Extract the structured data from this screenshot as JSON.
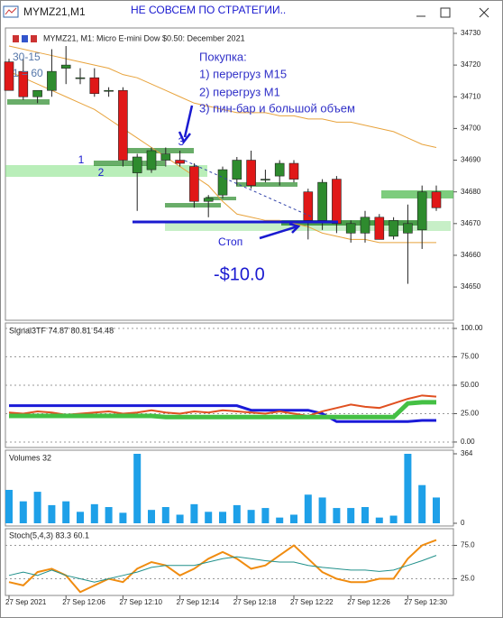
{
  "window": {
    "title": "MYMZ21,M1",
    "caption": "НЕ СОВСЕМ ПО СТРАТЕГИИ.."
  },
  "chart_data": [
    {
      "type": "candlestick",
      "title": "MYMZ21, M1:  Micro E-mini Dow $0.50: December 2021",
      "open": [
        34721,
        34718,
        34710,
        34712,
        34719,
        34716,
        34716,
        34712,
        34712,
        34686,
        34687,
        34690,
        34690,
        34688,
        34677,
        34679,
        34684,
        34690,
        34684,
        34685,
        34689,
        34680,
        34671,
        34684,
        34667,
        34667,
        34672,
        34666,
        34667,
        34668,
        34680
      ],
      "high": [
        34722,
        34722,
        34712,
        34725,
        34726,
        34719,
        34719,
        34713,
        34713,
        34692,
        34694,
        34694,
        34693,
        34689,
        34679,
        34688,
        34691,
        34693,
        34687,
        34690,
        34690,
        34681,
        34684,
        34685,
        34671,
        34674,
        34673,
        34672,
        34676,
        34682,
        34682
      ],
      "low": [
        34712,
        34709,
        34708,
        34710,
        34714,
        34714,
        34710,
        34710,
        34688,
        34674,
        34686,
        34688,
        34688,
        34675,
        34672,
        34678,
        34682,
        34681,
        34683,
        34682,
        34683,
        34665,
        34668,
        34667,
        34664,
        34664,
        34665,
        34665,
        34651,
        34662,
        34674
      ],
      "close": [
        34712,
        34710,
        34712,
        34718,
        34720,
        34716,
        34711,
        34712,
        34690,
        34691,
        34693,
        34692,
        34689,
        34677,
        34678,
        34687,
        34690,
        34682,
        34684,
        34689,
        34684,
        34671,
        34683,
        34670,
        34670,
        34672,
        34665,
        34671,
        34670,
        34680,
        34675
      ],
      "up_color": "#2e8b2e",
      "down_color": "#e01818",
      "bands": [
        {
          "color": "#e8a33c",
          "values": [
            34726,
            34725,
            34724,
            34723,
            34722,
            34721,
            34720,
            34719,
            34717,
            34716,
            34714,
            34712,
            34710,
            34708,
            34707,
            34706,
            34705,
            34705,
            34705,
            34704,
            34704,
            34703,
            34703,
            34702,
            34702,
            34701,
            34700,
            34699,
            34697,
            34695,
            34694
          ]
        },
        {
          "color": "#e8a33c",
          "values": [
            34718,
            34716,
            34714,
            34712,
            34710,
            34708,
            34706,
            34703,
            34700,
            34697,
            34694,
            34691,
            34688,
            34685,
            34682,
            34677,
            34673,
            34672,
            34671,
            34671,
            34670,
            34669,
            34667,
            34666,
            34665,
            34665,
            34664,
            34664,
            34664,
            34664,
            34664
          ]
        }
      ],
      "ylim": [
        34639.5,
        34731.7
      ],
      "yticks": [
        34650,
        34660,
        34670,
        34680,
        34690,
        34700,
        34710,
        34720,
        34730
      ],
      "xticks": [
        {
          "value": 0,
          "label": "27 Sep 2021"
        },
        {
          "value": 4,
          "label": "27 Sep 12:06"
        },
        {
          "value": 8,
          "label": "27 Sep 12:10"
        },
        {
          "value": 12,
          "label": "27 Sep 12:14"
        },
        {
          "value": 16,
          "label": "27 Sep 12:18"
        },
        {
          "value": 20,
          "label": "27 Sep 12:22"
        },
        {
          "value": 24,
          "label": "27 Sep 12:26"
        },
        {
          "value": 28,
          "label": "27 Sep 12:30"
        }
      ],
      "annotations": [
        "Покупка:",
        "1) перегруз М15",
        "2) перегруз М1",
        "3) пин-бар и большой объем",
        "1",
        "2",
        "3",
        "Стоп",
        "-$10.0",
        "30-15",
        "1 = 60"
      ]
    },
    {
      "type": "line",
      "title": "Signal3TF 74.87 80.81 54.48",
      "series": [
        {
          "color": "#1a1ad8",
          "width": 3,
          "values": [
            32,
            32,
            32,
            32,
            32,
            32,
            32,
            32,
            32,
            32,
            32,
            32,
            32,
            32,
            32,
            32,
            32,
            28,
            28,
            28,
            28,
            28,
            25,
            18,
            18,
            18,
            18,
            18,
            18,
            19,
            19
          ]
        },
        {
          "color": "#e05020",
          "width": 2,
          "values": [
            26,
            25,
            27,
            26,
            24,
            25,
            26,
            27,
            25,
            26,
            28,
            26,
            25,
            27,
            26,
            28,
            27,
            26,
            25,
            27,
            25,
            23,
            27,
            30,
            33,
            31,
            30,
            34,
            38,
            41,
            40
          ]
        },
        {
          "color": "#44c044",
          "width": 5,
          "values": [
            23,
            23,
            23,
            23,
            23,
            23,
            23,
            23,
            23,
            23,
            23,
            22,
            22,
            22,
            22,
            22,
            22,
            22,
            22,
            22,
            22,
            22,
            22,
            22,
            22,
            22,
            22,
            22,
            34,
            35,
            35
          ]
        }
      ],
      "ylim": [
        -4.8,
        104.8
      ],
      "yticks": [
        {
          "value": 0,
          "label": "0.00"
        },
        {
          "value": 25,
          "label": "25.00"
        },
        {
          "value": 50,
          "label": "50.00"
        },
        {
          "value": 75,
          "label": "75.00"
        },
        {
          "value": 100,
          "label": "100.00"
        }
      ],
      "grid": true
    },
    {
      "type": "bar",
      "title": "Volumes 32",
      "color": "#1ea0e8",
      "values": [
        175,
        115,
        165,
        95,
        115,
        60,
        100,
        85,
        55,
        364,
        70,
        85,
        45,
        100,
        60,
        60,
        95,
        70,
        80,
        30,
        45,
        150,
        135,
        80,
        80,
        85,
        30,
        40,
        364,
        200,
        135
      ],
      "ylim": [
        0,
        364
      ],
      "yticks": [
        0,
        364
      ]
    },
    {
      "type": "line",
      "title": "Stoch(5,4,3) 83.3 60.1",
      "series": [
        {
          "color": "#f08c10",
          "width": 2,
          "values": [
            20,
            15,
            35,
            40,
            30,
            5,
            15,
            25,
            20,
            40,
            50,
            45,
            30,
            40,
            55,
            65,
            55,
            40,
            45,
            60,
            75,
            55,
            35,
            25,
            20,
            20,
            25,
            25,
            55,
            75,
            83
          ]
        },
        {
          "color": "#20908a",
          "width": 1,
          "values": [
            30,
            35,
            30,
            38,
            30,
            25,
            20,
            25,
            30,
            35,
            42,
            45,
            45,
            45,
            50,
            55,
            58,
            55,
            52,
            50,
            50,
            45,
            42,
            40,
            38,
            38,
            36,
            38,
            45,
            52,
            60
          ]
        }
      ],
      "ylim": [
        0,
        100
      ],
      "yticks": [
        {
          "value": 25,
          "label": "25.0"
        },
        {
          "value": 75,
          "label": "75.0"
        }
      ],
      "grid": true
    }
  ]
}
